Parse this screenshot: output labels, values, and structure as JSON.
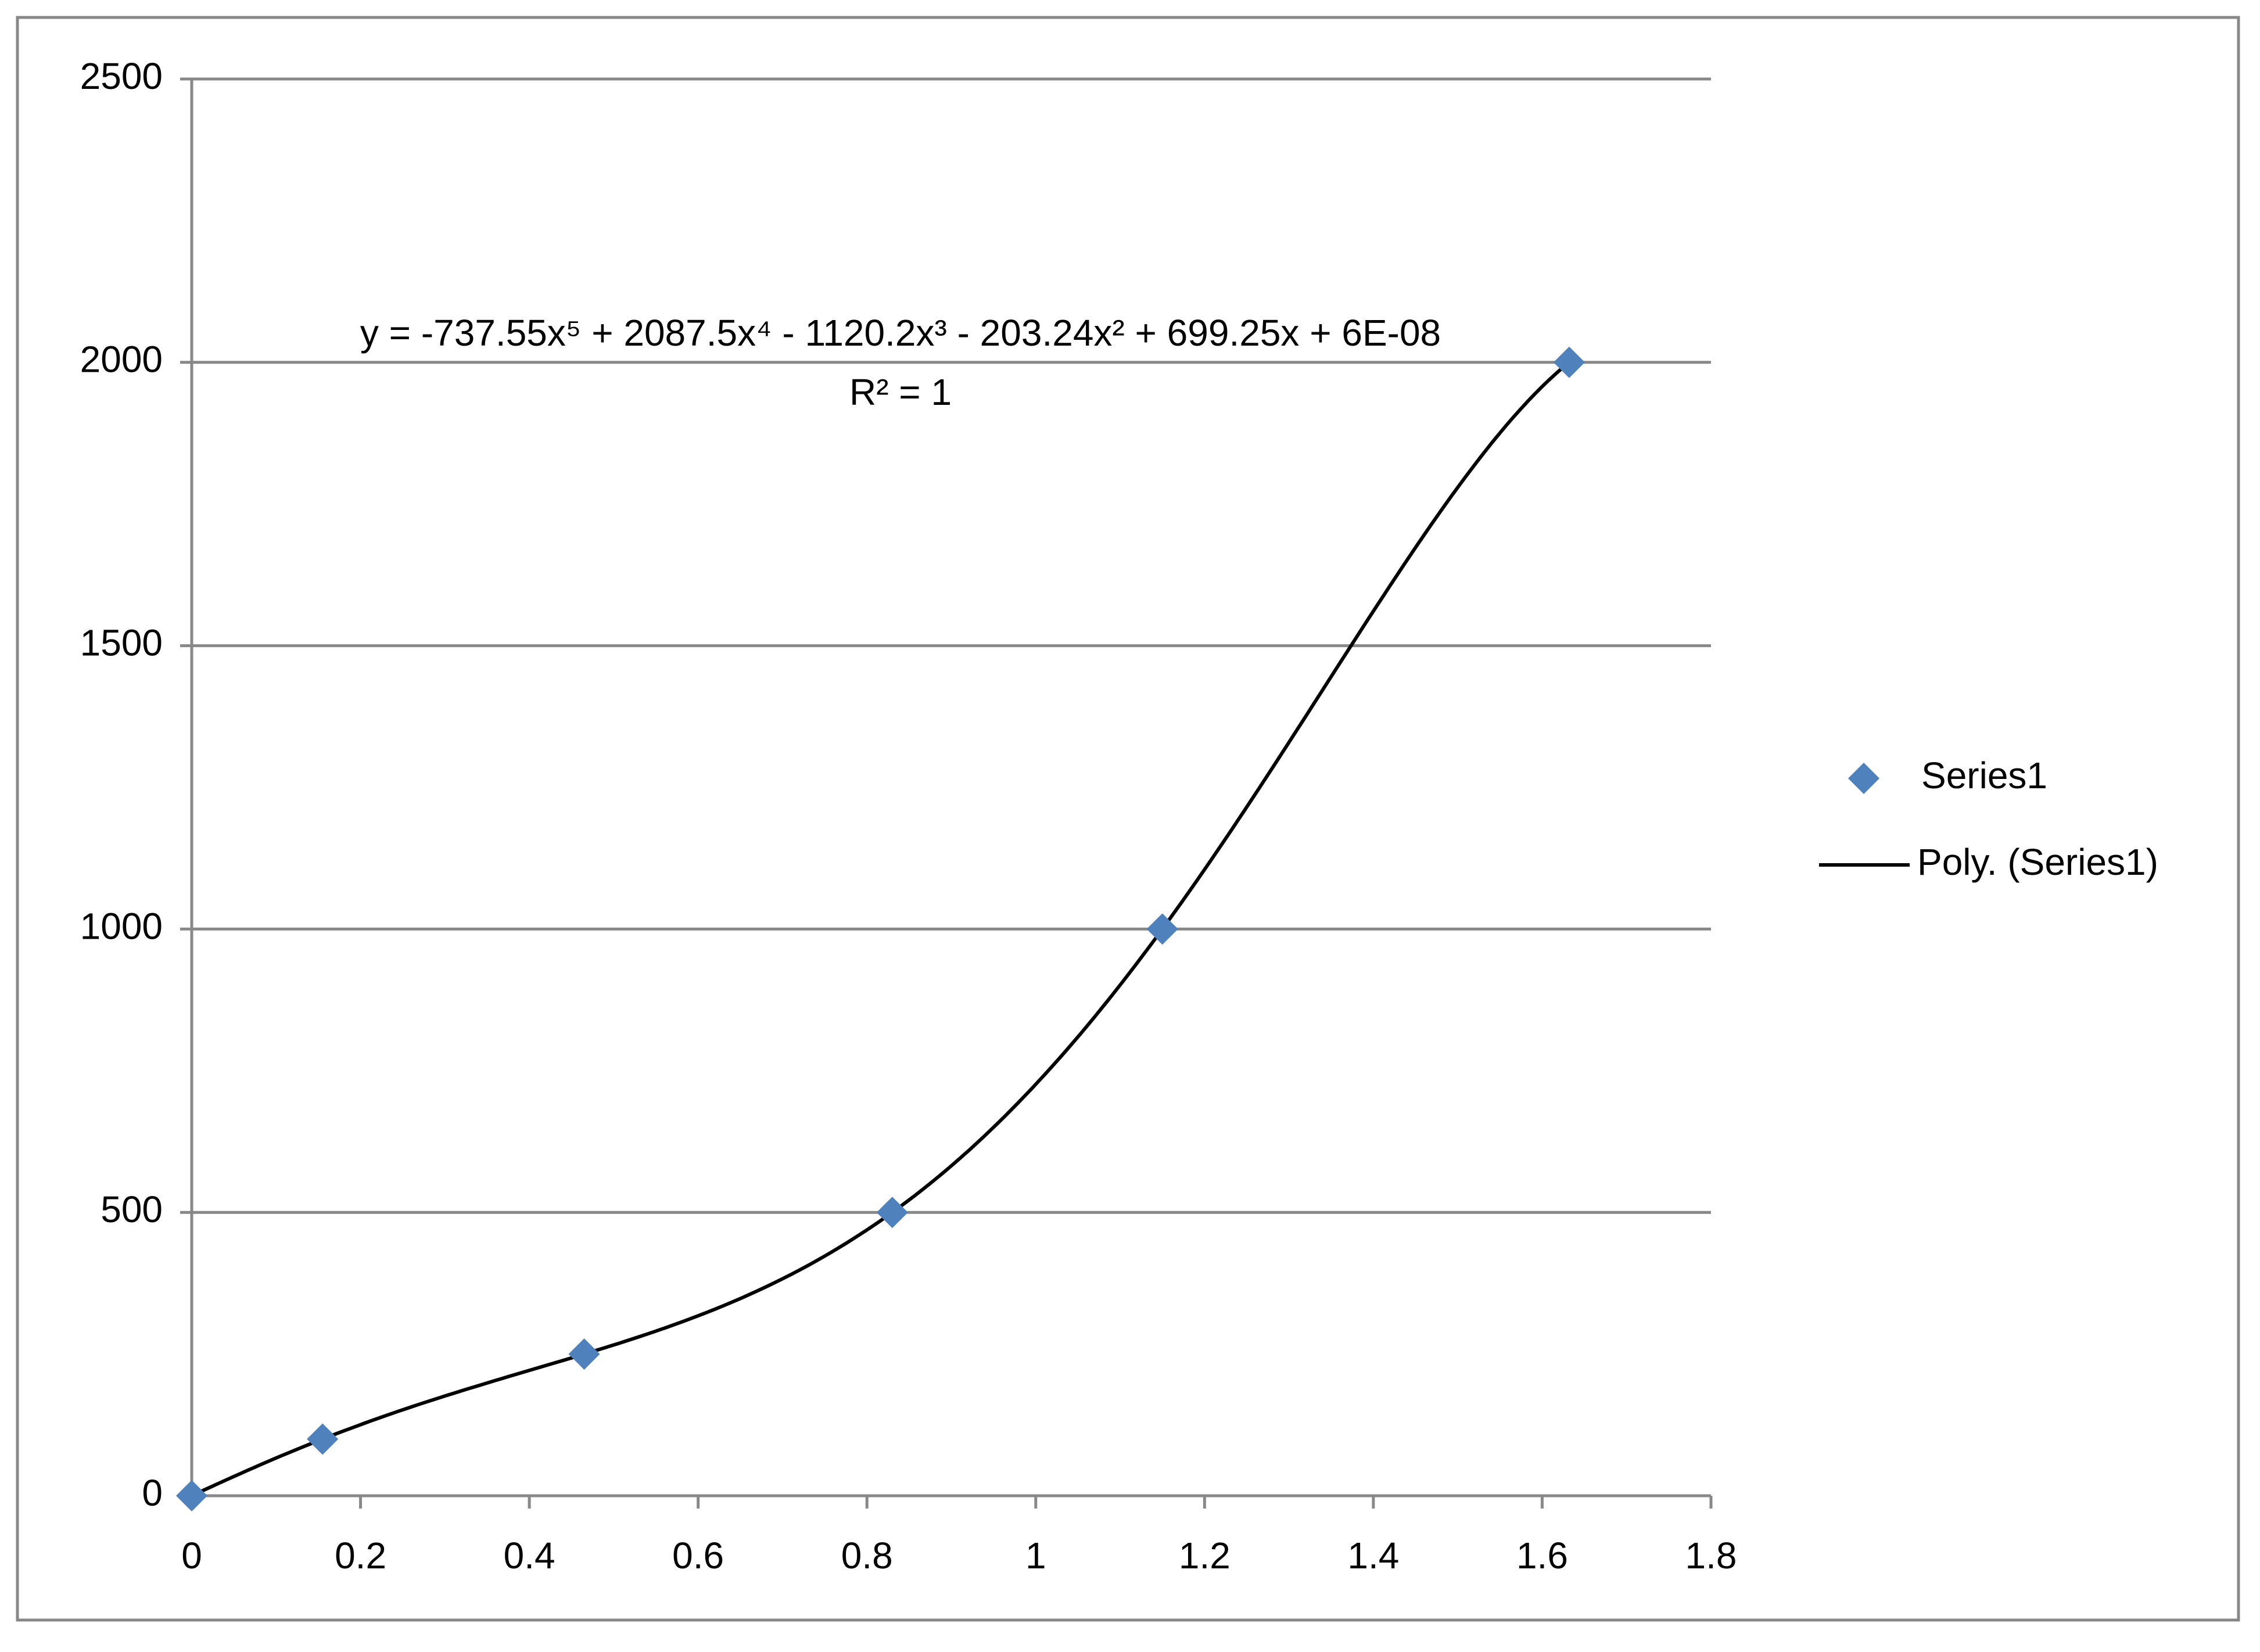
{
  "chart_data": {
    "type": "scatter",
    "x": [
      0,
      0.155,
      0.465,
      0.83,
      1.15,
      1.632
    ],
    "series": [
      {
        "name": "Series1",
        "color": "#4f81bd",
        "values": [
          0,
          100,
          250,
          500,
          1000,
          2000
        ]
      }
    ],
    "trendline": {
      "name": "Poly. (Series1)",
      "color": "#000000",
      "equation": "y = -737.55x⁵ + 2087.5x⁴ - 1120.2x³ - 203.24x² + 699.25x + 6E-08",
      "r_squared": "R² = 1"
    },
    "xlim": [
      0,
      1.8
    ],
    "xticks": [
      0,
      0.2,
      0.4,
      0.6,
      0.8,
      1,
      1.2,
      1.4,
      1.6,
      1.8
    ],
    "ylim": [
      0,
      2500
    ],
    "yticks": [
      0,
      500,
      1000,
      1500,
      2000,
      2500
    ],
    "grid": true,
    "legend": "right"
  }
}
